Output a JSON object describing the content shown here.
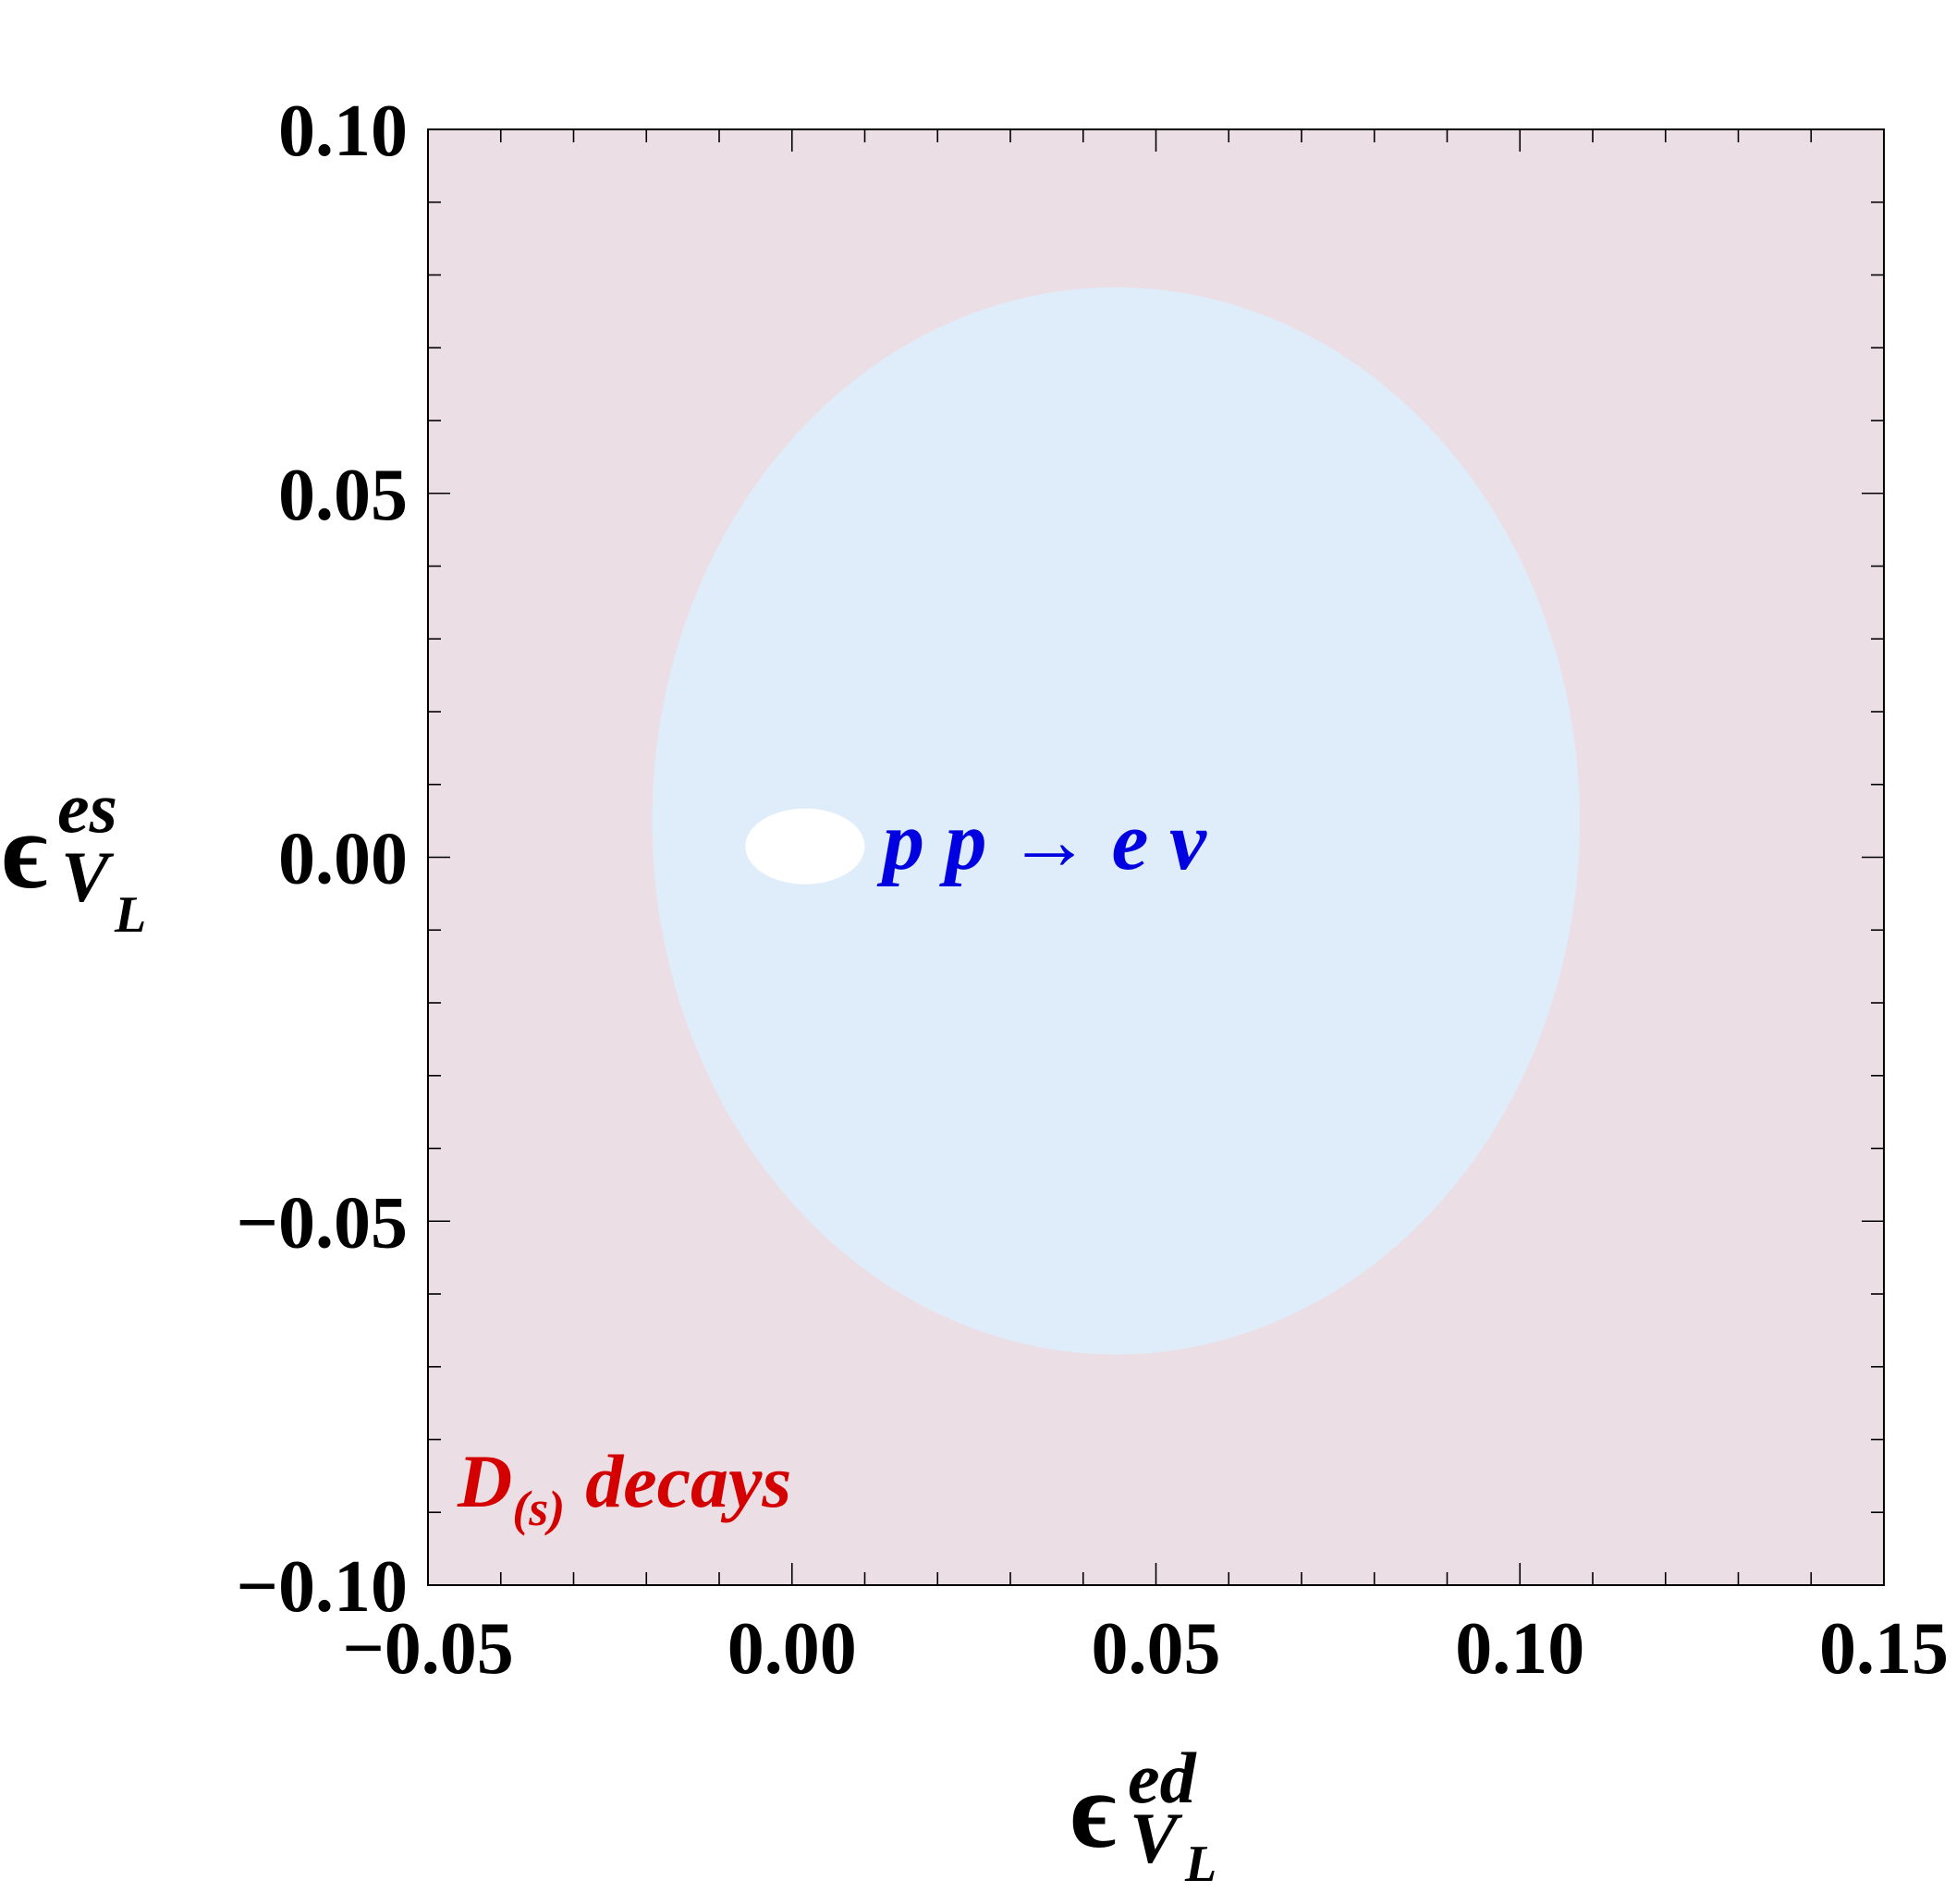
{
  "chart_data": {
    "type": "contour-region",
    "xlabel": {
      "symbol": "ϵ",
      "superscript": "ed",
      "subscript": "V",
      "subsubscript": "L"
    },
    "ylabel": {
      "symbol": "ϵ",
      "superscript": "es",
      "subscript": "V",
      "subsubscript": "L"
    },
    "xlim": [
      -0.05,
      0.15
    ],
    "ylim": [
      -0.1,
      0.1
    ],
    "x_ticks": [
      -0.05,
      0.0,
      0.05,
      0.1,
      0.15
    ],
    "y_ticks": [
      -0.1,
      -0.05,
      0.0,
      0.05,
      0.1
    ],
    "x_tick_labels": [
      "−0.05",
      "0.00",
      "0.05",
      "0.10",
      "0.15"
    ],
    "y_tick_labels": [
      "−0.10",
      "−0.05",
      "0.00",
      "0.05",
      "0.10"
    ],
    "minor_tick_step": 0.01,
    "grid": false,
    "regions": [
      {
        "name": "D(s) decays",
        "label_main": "D",
        "label_sub": "(s)",
        "label_rest": "decays",
        "shape": "rectangle",
        "x_range": [
          -0.05,
          0.15
        ],
        "y_range": [
          -0.1,
          0.1
        ],
        "fill": "#ebdfe5",
        "label_color": "#d40000",
        "label_position": "bottom-left"
      },
      {
        "name": "p p → e ν",
        "label": "p p → e ν",
        "shape": "ellipse",
        "center": [
          0.0445,
          0.005
        ],
        "semi_axes": [
          0.0637,
          0.0733
        ],
        "fill": "#dfedfb",
        "label_color": "#0000e0"
      },
      {
        "name": "combined",
        "shape": "ellipse",
        "center": [
          0.0018,
          0.0015
        ],
        "semi_axes": [
          0.0082,
          0.0052
        ],
        "fill": "#ffffff"
      }
    ]
  }
}
